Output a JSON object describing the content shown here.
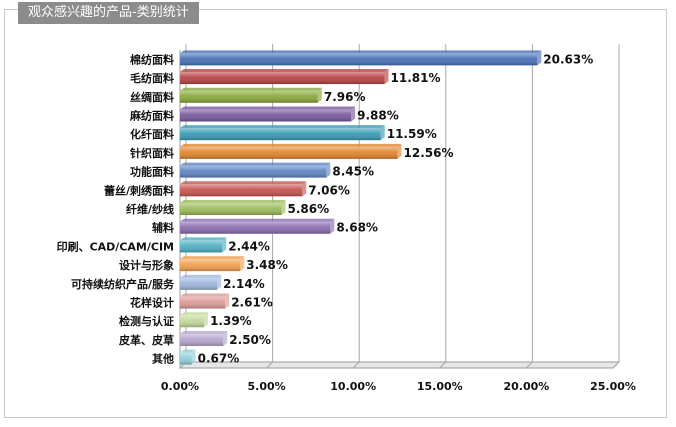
{
  "page_title": "观众感兴趣的产品-类别统计",
  "chart_data": {
    "type": "bar",
    "orientation": "horizontal",
    "title": "",
    "xlabel": "",
    "ylabel": "",
    "xlim": [
      0,
      25
    ],
    "xticks": [
      0,
      5,
      10,
      15,
      20,
      25
    ],
    "xtick_labels": [
      "0.00%",
      "5.00%",
      "10.00%",
      "15.00%",
      "20.00%",
      "25.00%"
    ],
    "grid": "vertical",
    "categories": [
      "棉纺面料",
      "毛纺面料",
      "丝绸面料",
      "麻纺面料",
      "化纤面料",
      "针织面料",
      "功能面料",
      "蕾丝/刺绣面料",
      "纤维/纱线",
      "辅料",
      "印刷、CAD/CAM/CIM",
      "设计与形象",
      "可持续纺织产品/服务",
      "花样设计",
      "检测与认证",
      "皮革、皮草",
      "其他"
    ],
    "values": [
      20.63,
      11.81,
      7.96,
      9.88,
      11.59,
      12.56,
      8.45,
      7.06,
      5.86,
      8.68,
      2.44,
      3.48,
      2.14,
      2.61,
      1.39,
      2.5,
      0.67
    ],
    "value_labels": [
      "20.63%",
      "11.81%",
      "7.96%",
      "9.88%",
      "11.59%",
      "12.56%",
      "8.45%",
      "7.06%",
      "5.86%",
      "8.68%",
      "2.44%",
      "3.48%",
      "2.14%",
      "2.61%",
      "1.39%",
      "2.50%",
      "0.67%"
    ],
    "colors": [
      "#4a72b8",
      "#b84444",
      "#8aa83c",
      "#7a5a9e",
      "#3a9cb4",
      "#e0862e",
      "#5f86c4",
      "#c75450",
      "#9cbc5c",
      "#8a6db0",
      "#4fb0c6",
      "#f0a050",
      "#9db6dc",
      "#dc9a98",
      "#c4d89a",
      "#b6a6ce",
      "#92cedc"
    ]
  }
}
